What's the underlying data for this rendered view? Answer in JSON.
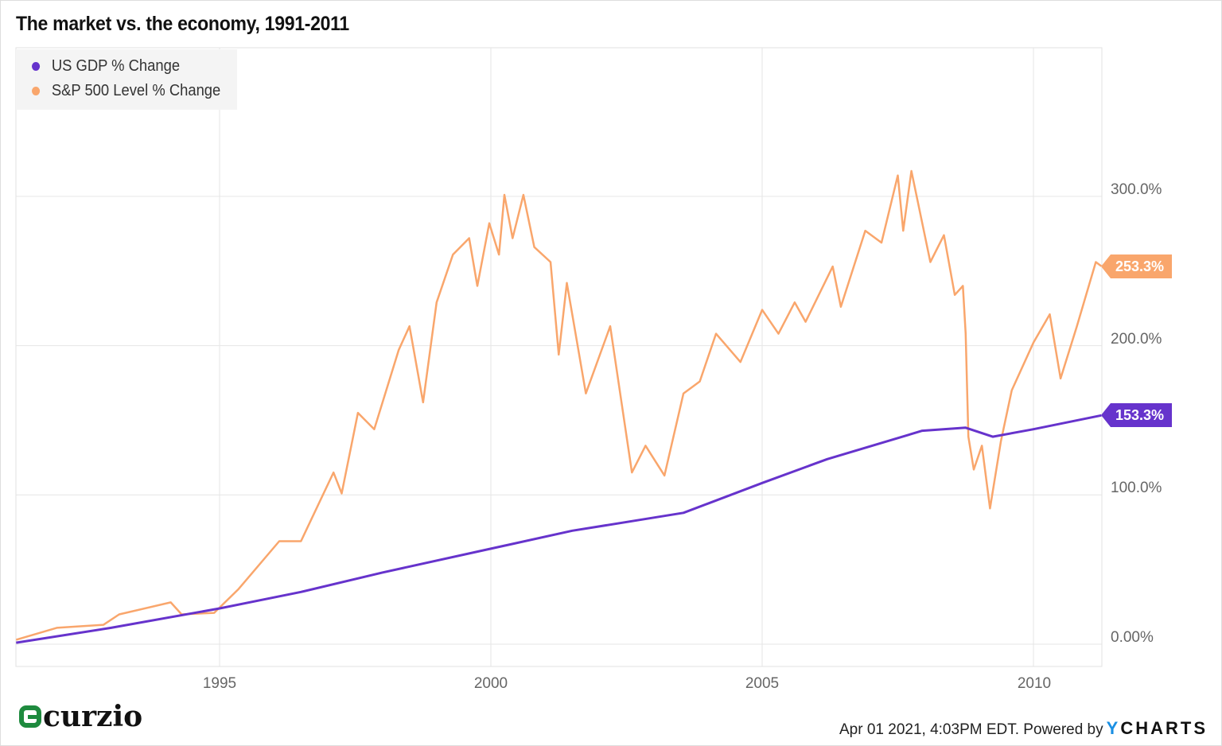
{
  "chart_data": {
    "type": "line",
    "title": "The market vs. the economy, 1991-2011",
    "xlabel": "",
    "ylabel": "",
    "xlim": [
      1991.25,
      2011.25
    ],
    "ylim": [
      -15,
      400
    ],
    "x_ticks": [
      "1995",
      "2000",
      "2005",
      "2010"
    ],
    "y_ticks": [
      "0.00%",
      "100.0%",
      "200.0%",
      "300.0%"
    ],
    "grid": true,
    "legend_position": "top-left",
    "series": [
      {
        "name": "US GDP % Change",
        "color": "#6633cc",
        "end_label": "153.3%",
        "x": [
          1991.25,
          1993.0,
          1995.0,
          1996.5,
          1998.0,
          2000.0,
          2001.5,
          2002.7,
          2003.55,
          2005.0,
          2006.2,
          2007.95,
          2008.75,
          2009.25,
          2010.0,
          2011.25
        ],
        "y": [
          1,
          11,
          24,
          35,
          48,
          64,
          76,
          83,
          88,
          108,
          124,
          143,
          145,
          139,
          144,
          153.3
        ]
      },
      {
        "name": "S&P 500 Level % Change",
        "color": "#f9a66c",
        "end_label": "253.3%",
        "x": [
          1991.25,
          1992.0,
          1992.86,
          1993.15,
          1994.1,
          1994.3,
          1994.9,
          1995.35,
          1996.1,
          1996.5,
          1997.1,
          1997.25,
          1997.55,
          1997.85,
          1998.3,
          1998.5,
          1998.75,
          1999.0,
          1999.3,
          1999.6,
          1999.75,
          1999.97,
          2000.15,
          2000.25,
          2000.4,
          2000.6,
          2000.8,
          2001.1,
          2001.25,
          2001.4,
          2001.75,
          2002.2,
          2002.6,
          2002.85,
          2003.2,
          2003.55,
          2003.85,
          2004.15,
          2004.6,
          2005.0,
          2005.3,
          2005.6,
          2005.8,
          2006.3,
          2006.45,
          2006.9,
          2007.2,
          2007.5,
          2007.6,
          2007.75,
          2008.1,
          2008.35,
          2008.55,
          2008.7,
          2008.75,
          2008.8,
          2008.9,
          2009.05,
          2009.2,
          2009.4,
          2009.6,
          2010.0,
          2010.3,
          2010.5,
          2010.8,
          2011.15,
          2011.25
        ],
        "y": [
          3,
          11,
          13,
          20,
          28,
          20,
          21,
          37,
          69,
          69,
          115,
          101,
          155,
          144,
          197,
          213,
          162,
          229,
          261,
          272,
          240,
          282,
          261,
          301,
          272,
          301,
          266,
          256,
          194,
          242,
          168,
          213,
          115,
          133,
          113,
          168,
          176,
          208,
          189,
          224,
          208,
          229,
          216,
          253,
          226,
          277,
          269,
          314,
          277,
          317,
          256,
          274,
          234,
          240,
          208,
          139,
          117,
          133,
          91,
          136,
          170,
          202,
          221,
          178,
          213,
          256,
          253.3
        ]
      }
    ]
  },
  "footer": {
    "timestamp": "Apr 01 2021, 4:03PM EDT. Powered by",
    "brand_y": "Y",
    "brand_rest": "CHARTS"
  },
  "logo": {
    "text": "curzio"
  }
}
